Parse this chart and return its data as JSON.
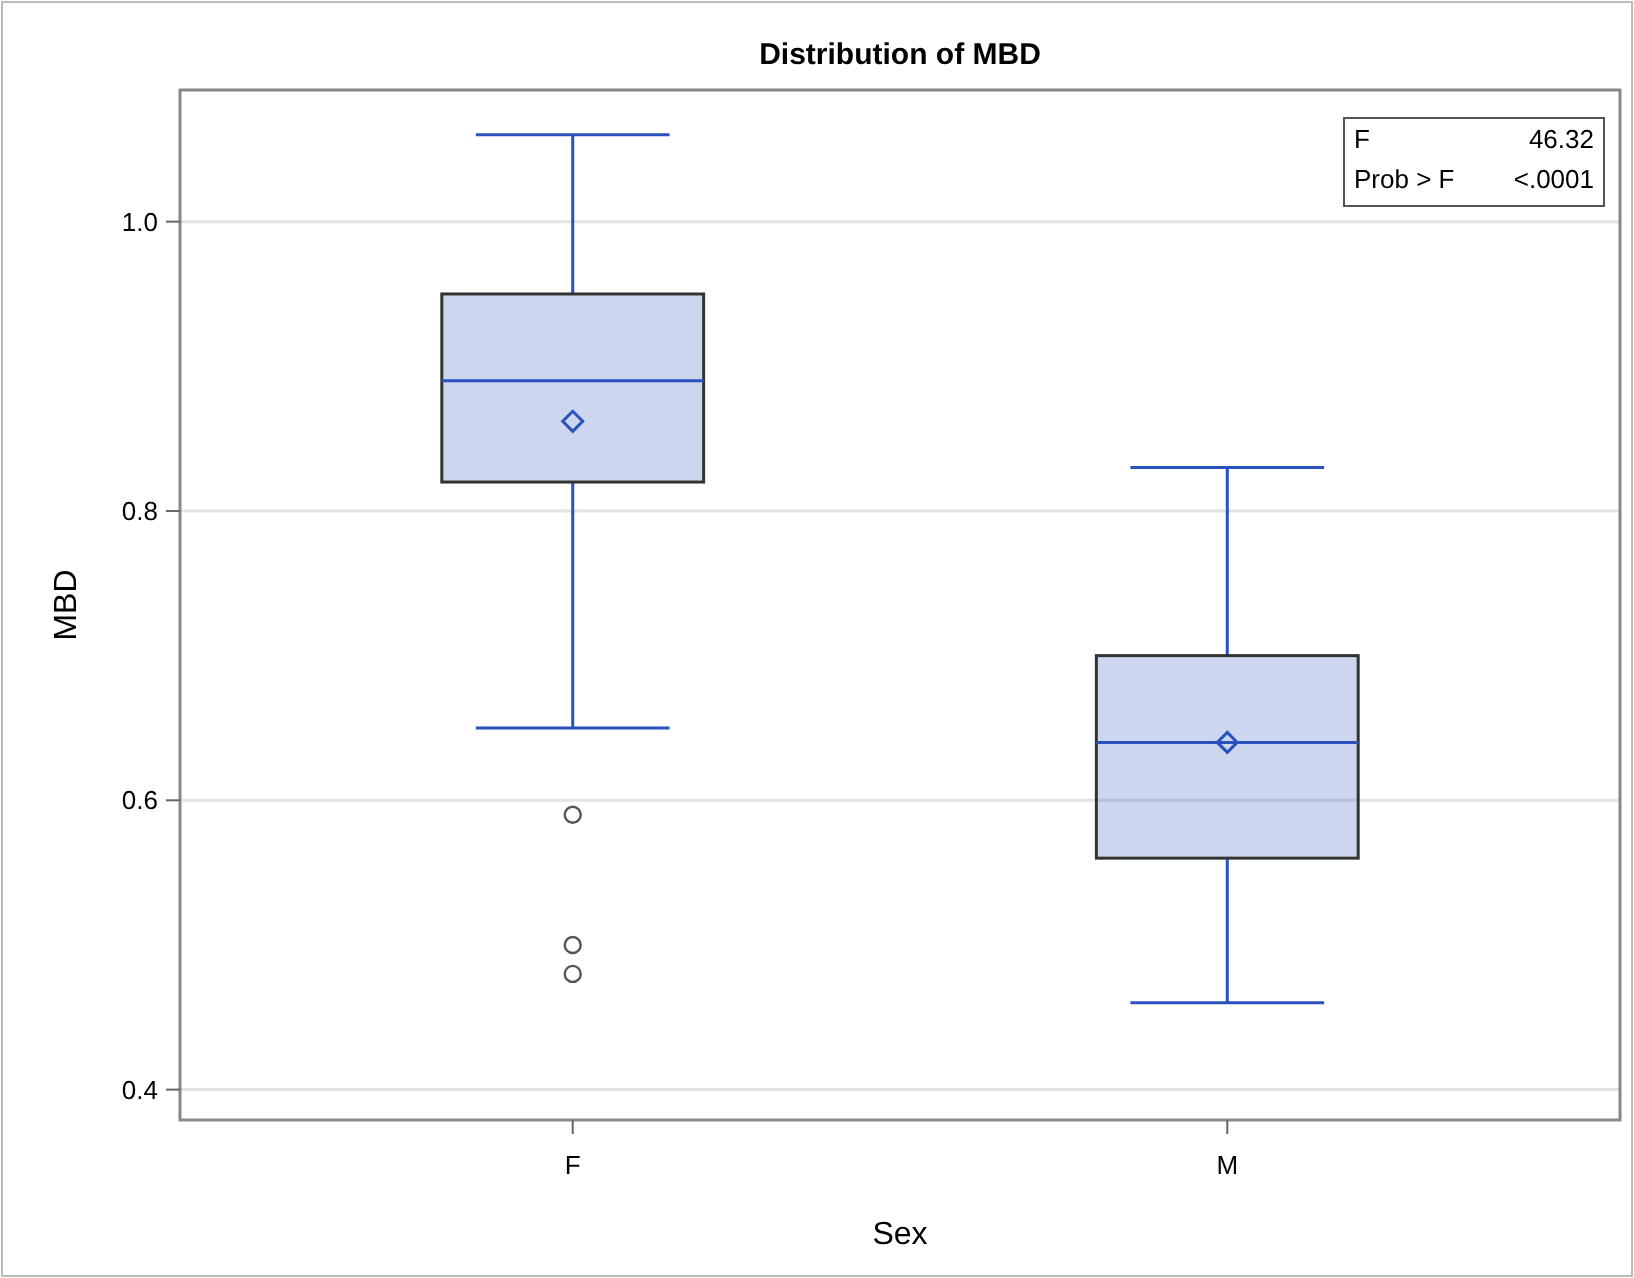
{
  "chart_data": {
    "type": "box",
    "title": "Distribution of MBD",
    "xlabel": "Sex",
    "ylabel": "MBD",
    "categories": [
      "F",
      "M"
    ],
    "series": [
      {
        "color": "#2a52be",
        "boxes": [
          {
            "low": 0.65,
            "q1": 0.82,
            "median": 0.89,
            "q3": 0.95,
            "high": 1.06,
            "mean": 0.862,
            "outliers": [
              0.59,
              0.5,
              0.48
            ]
          },
          {
            "low": 0.46,
            "q1": 0.56,
            "median": 0.64,
            "q3": 0.7,
            "high": 0.83,
            "mean": 0.64
          }
        ]
      }
    ],
    "ylim": [
      0.379,
      1.091
    ],
    "yticks": [
      {
        "value": 0.4,
        "label": "0.4"
      },
      {
        "value": 0.6,
        "label": "0.6"
      },
      {
        "value": 0.8,
        "label": "0.8"
      },
      {
        "value": 1.0,
        "label": "1.0"
      }
    ],
    "grid": "y",
    "annotations": [
      "F",
      "46.32",
      "Prob > F",
      "<.0001"
    ]
  }
}
